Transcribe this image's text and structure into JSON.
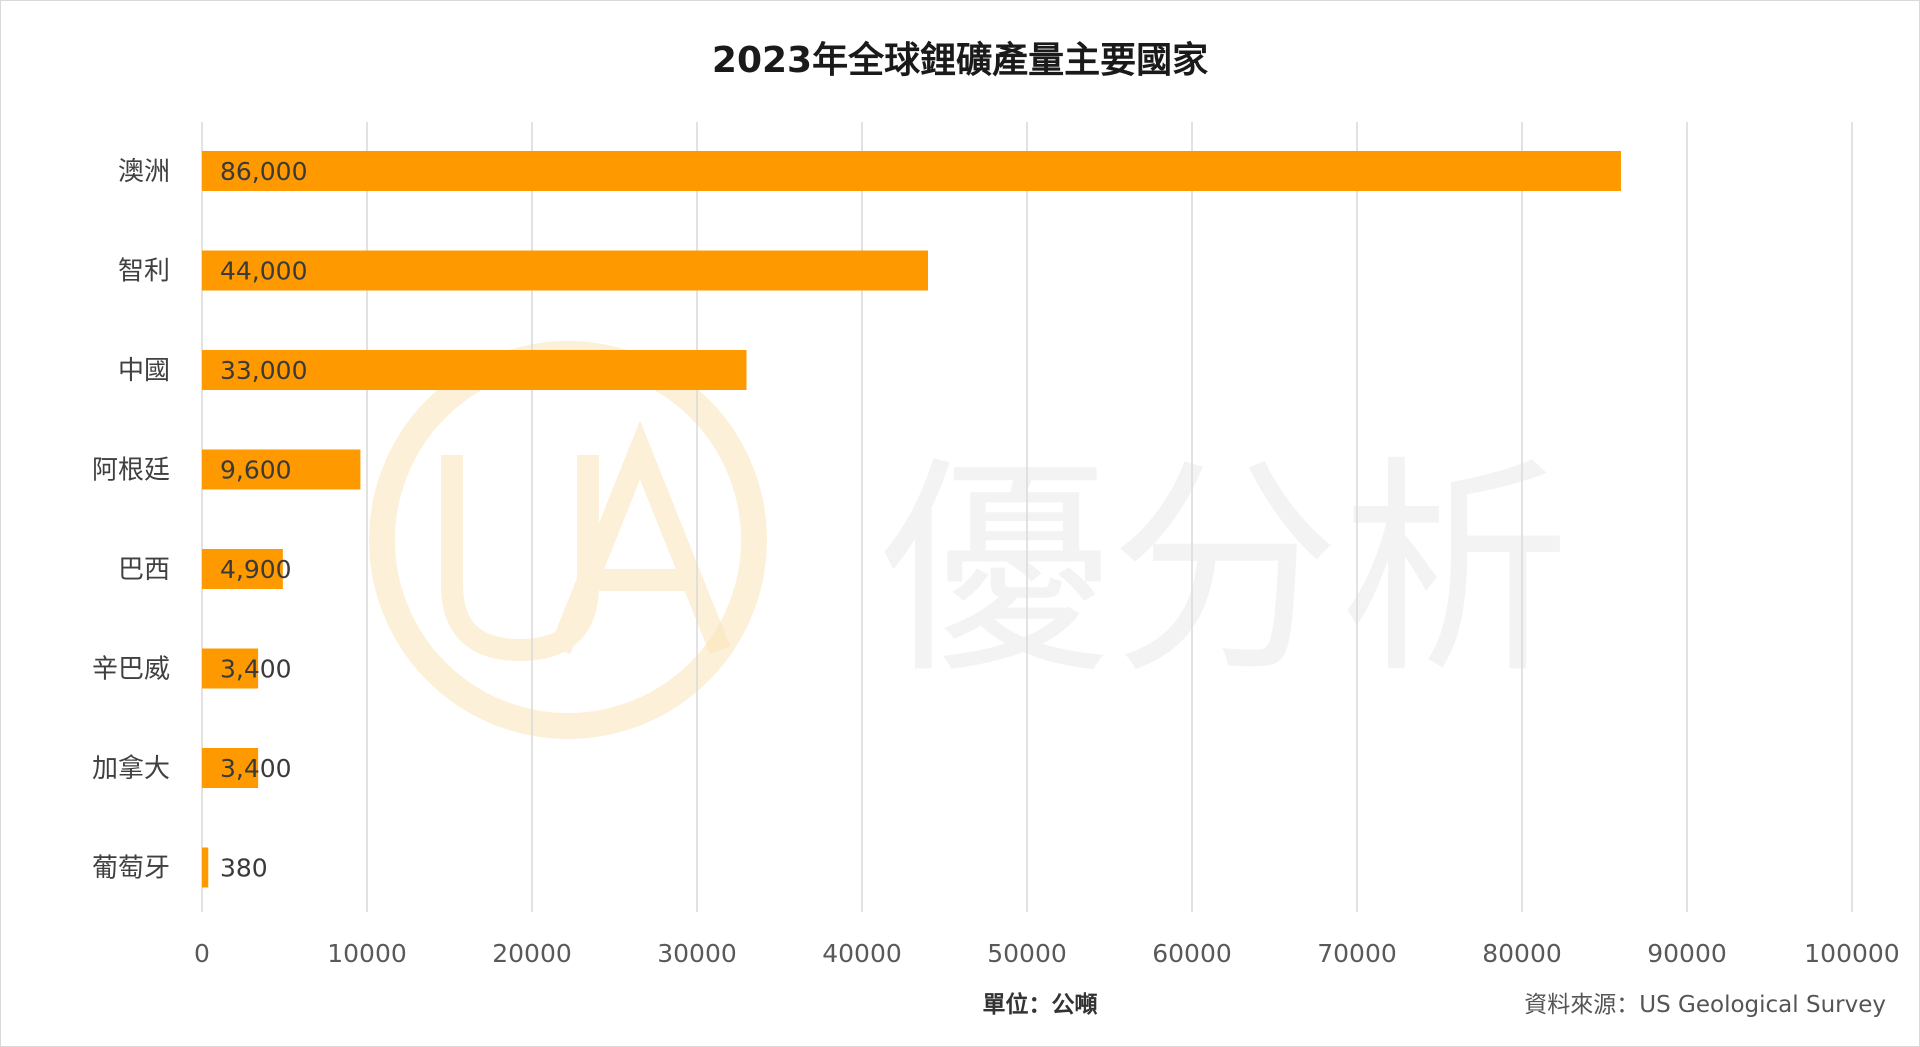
{
  "chart_data": {
    "type": "bar",
    "orientation": "horizontal",
    "title": "2023年全球鋰礦產量主要國家",
    "categories": [
      "澳洲",
      "智利",
      "中國",
      "阿根廷",
      "巴西",
      "辛巴威",
      "加拿大",
      "葡萄牙"
    ],
    "values": [
      86000,
      44000,
      33000,
      9600,
      4900,
      3400,
      3400,
      380
    ],
    "data_labels": [
      "86,000",
      "44,000",
      "33,000",
      "9,600",
      "4,900",
      "3,400",
      "3,400",
      "380"
    ],
    "xlim": [
      0,
      100000
    ],
    "x_ticks": [
      0,
      10000,
      20000,
      30000,
      40000,
      50000,
      60000,
      70000,
      80000,
      90000,
      100000
    ],
    "x_tick_labels": [
      "0",
      "10000",
      "20000",
      "30000",
      "40000",
      "50000",
      "60000",
      "70000",
      "80000",
      "90000",
      "100000"
    ],
    "grid": "vertical",
    "bar_color": "#ff9900",
    "gridline_color": "#d9d9d9",
    "unit_note": "單位：公噸",
    "source_note": "資料來源：US Geological Survey"
  },
  "watermark": {
    "text": "優分析",
    "logo_letters": "UA",
    "logo_color": "#fbe3b8"
  }
}
